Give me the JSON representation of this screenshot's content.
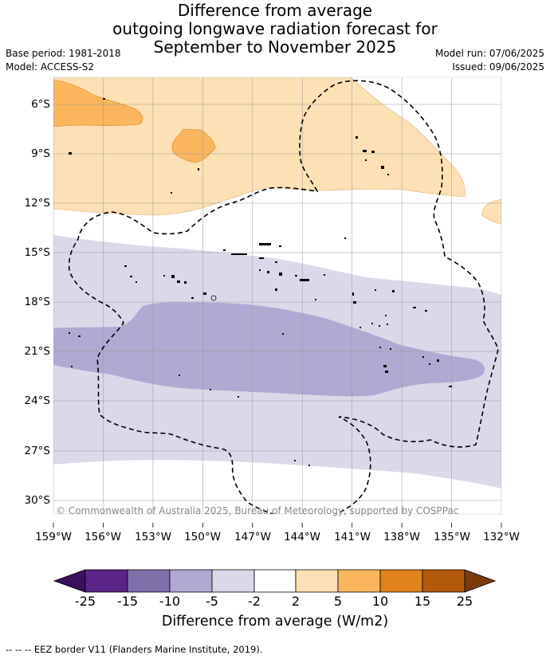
{
  "title_lines": [
    "Difference from average",
    "outgoing longwave radiation forecast for",
    "September to November 2025"
  ],
  "meta": {
    "base_period": "Base period: 1981-2018",
    "model": "Model: ACCESS-S2",
    "model_run": "Model run: 07/06/2025",
    "issued": "Issued: 09/06/2025"
  },
  "map": {
    "lat_labels": [
      "6°S",
      "9°S",
      "12°S",
      "15°S",
      "18°S",
      "21°S",
      "24°S",
      "27°S",
      "30°S"
    ],
    "lon_labels": [
      "159°W",
      "156°W",
      "153°W",
      "150°W",
      "147°W",
      "144°W",
      "141°W",
      "138°W",
      "135°W",
      "132°W"
    ],
    "copyright": "© Commonwealth of Australia 2025, Bureau of Meteorology, supported by COSPPac",
    "colors": {
      "pos_2_5": "#fde0b3",
      "pos_5_10": "#fbb55c",
      "neg_2_5": "#d9d9ea",
      "neg_5_10": "#b1a9d3",
      "eez_border": "#000000",
      "grid": "#999999"
    }
  },
  "colorbar": {
    "labels": [
      "-25",
      "-15",
      "-10",
      "-5",
      "-2",
      "2",
      "5",
      "10",
      "15",
      "25"
    ],
    "colors": [
      "#3a0f5e",
      "#5a2385",
      "#7f6fab",
      "#b1a9d3",
      "#d9d9ea",
      "#ffffff",
      "#fde0b3",
      "#fbb55c",
      "#e1821a",
      "#b3590b",
      "#7b3b08"
    ],
    "title": "Difference from average (W/m2)"
  },
  "footer": "--  --  -- EEZ border V11 (Flanders Marine Institute, 2019)."
}
